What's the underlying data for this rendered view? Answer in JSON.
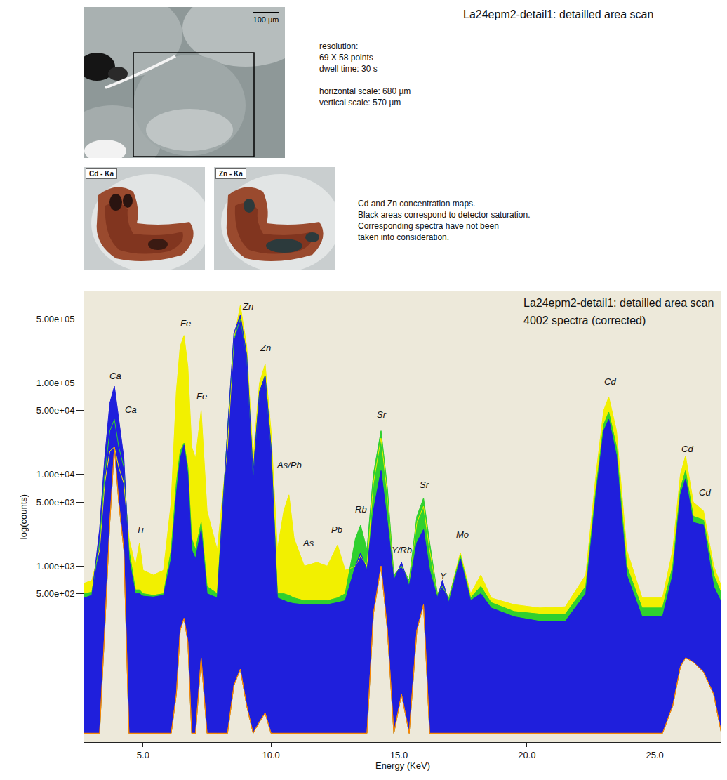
{
  "header": {
    "title": "La24epm2-detail1: detailled area scan"
  },
  "scan_info": [
    [
      "resolution:",
      "69 X 58 points",
      "dwell time: 30 s"
    ],
    [
      "horizontal scale: 680 µm",
      "vertical scale: 570 µm"
    ]
  ],
  "image": {
    "scale_bar": "100 µm"
  },
  "maps": [
    {
      "label": "Cd - Ka"
    },
    {
      "label": "Zn - Ka"
    }
  ],
  "caption": [
    "Cd and Zn concentration maps.",
    "Black areas correspond to detector saturation.",
    "Corresponding spectra have not been",
    "taken into consideration."
  ],
  "chart_data": {
    "type": "line",
    "title": "La24epm2-detail1: detailled area scan",
    "subtitle": "4002 spectra (corrected)",
    "x_label": "Energy (KeV)",
    "y_label": "log(counts)",
    "log": "y",
    "grid": false,
    "xlim": [
      2.7,
      27.6
    ],
    "ylim": [
      12,
      1000000
    ],
    "xticks": [
      {
        "value": 5,
        "label": "5.0"
      },
      {
        "value": 10,
        "label": "10.0"
      },
      {
        "value": 15,
        "label": "15.0"
      },
      {
        "value": 20,
        "label": "20.0"
      },
      {
        "value": 25,
        "label": "25.0"
      }
    ],
    "yticks": [
      {
        "value": 500,
        "label": "5.00e+02"
      },
      {
        "value": 1000,
        "label": "1.00e+03"
      },
      {
        "value": 5000,
        "label": "5.00e+03"
      },
      {
        "value": 10000,
        "label": "1.00e+04"
      },
      {
        "value": 50000,
        "label": "5.00e+04"
      },
      {
        "value": 100000,
        "label": "1.00e+05"
      },
      {
        "value": 500000,
        "label": "5.00e+05"
      }
    ],
    "x": [
      2.7,
      3.0,
      3.3,
      3.5,
      3.7,
      3.88,
      4.05,
      4.25,
      4.45,
      4.7,
      4.86,
      5.0,
      5.4,
      5.8,
      6.1,
      6.3,
      6.45,
      6.6,
      6.75,
      6.9,
      7.05,
      7.27,
      7.5,
      7.9,
      8.3,
      8.55,
      8.8,
      9.05,
      9.3,
      9.55,
      9.77,
      10.0,
      10.25,
      10.5,
      10.7,
      10.9,
      11.3,
      11.8,
      12.2,
      12.6,
      12.9,
      13.3,
      13.5,
      13.75,
      14.0,
      14.3,
      14.55,
      14.8,
      15.1,
      15.4,
      15.7,
      15.96,
      16.2,
      16.5,
      16.7,
      16.95,
      17.4,
      17.8,
      18.2,
      18.6,
      19.5,
      20.5,
      21.5,
      22.3,
      22.7,
      23.0,
      23.2,
      23.5,
      23.9,
      24.5,
      25.3,
      25.7,
      26.0,
      26.2,
      26.5,
      26.9,
      27.3,
      27.6
    ],
    "series": [
      {
        "color": "#f2f000",
        "values": [
          650,
          700,
          1500,
          8000,
          18000,
          20000,
          12000,
          8000,
          2000,
          1000,
          1800,
          900,
          800,
          900,
          5000,
          80000,
          250000,
          330000,
          150000,
          20000,
          15000,
          50000,
          4000,
          1500,
          20000,
          300000,
          700000,
          250000,
          15000,
          100000,
          160000,
          30000,
          1500,
          4000,
          6000,
          2000,
          1000,
          1100,
          1000,
          1700,
          900,
          1000,
          1300,
          1000,
          8000,
          25000,
          6000,
          800,
          1000,
          700,
          3000,
          4500,
          1500,
          500,
          600,
          450,
          1400,
          500,
          800,
          450,
          380,
          350,
          360,
          800,
          10000,
          50000,
          70000,
          30000,
          1500,
          450,
          450,
          1500,
          10000,
          16000,
          5000,
          4000,
          1000,
          600
        ]
      },
      {
        "color": "#2fd02f",
        "values": [
          500,
          520,
          1800,
          10000,
          30000,
          40000,
          20000,
          12000,
          1500,
          550,
          550,
          500,
          480,
          500,
          1500,
          8000,
          18000,
          22000,
          12000,
          2000,
          1500,
          3000,
          600,
          500,
          30000,
          300000,
          500000,
          200000,
          10000,
          80000,
          120000,
          20000,
          500,
          500,
          480,
          450,
          420,
          420,
          420,
          450,
          500,
          2000,
          2800,
          1500,
          10000,
          30000,
          7000,
          800,
          1000,
          700,
          3500,
          5500,
          1800,
          500,
          600,
          450,
          1300,
          450,
          600,
          400,
          320,
          300,
          300,
          600,
          7000,
          35000,
          48000,
          20000,
          1000,
          350,
          350,
          1000,
          7000,
          11000,
          3500,
          3200,
          800,
          500
        ]
      },
      {
        "color": "#1f1fdc",
        "values": [
          450,
          480,
          2500,
          15000,
          60000,
          92000,
          40000,
          15000,
          1200,
          500,
          500,
          470,
          460,
          480,
          1200,
          6000,
          15000,
          21000,
          10000,
          1500,
          1200,
          2500,
          500,
          450,
          30000,
          350000,
          550000,
          200000,
          10000,
          80000,
          120000,
          20000,
          450,
          420,
          400,
          390,
          380,
          380,
          380,
          400,
          420,
          1000,
          1400,
          900,
          4000,
          11000,
          3000,
          700,
          1100,
          600,
          1800,
          2500,
          900,
          450,
          700,
          400,
          1200,
          420,
          500,
          350,
          280,
          250,
          250,
          500,
          6000,
          30000,
          40000,
          16000,
          800,
          280,
          280,
          800,
          6000,
          9000,
          3000,
          2800,
          600,
          400
        ]
      },
      {
        "color": "#ff8a00",
        "values": [
          15,
          15,
          15,
          200,
          3000,
          20000,
          5000,
          1500,
          15,
          15,
          15,
          15,
          15,
          15,
          15,
          40,
          200,
          270,
          150,
          15,
          15,
          100,
          15,
          15,
          15,
          50,
          75,
          30,
          15,
          20,
          25,
          15,
          15,
          15,
          15,
          15,
          15,
          15,
          15,
          15,
          15,
          15,
          15,
          15,
          300,
          1000,
          200,
          15,
          40,
          15,
          200,
          380,
          15,
          15,
          15,
          15,
          15,
          15,
          15,
          15,
          15,
          15,
          15,
          15,
          15,
          15,
          15,
          15,
          15,
          15,
          15,
          30,
          80,
          100,
          90,
          70,
          40,
          15
        ]
      }
    ],
    "annotations": [
      {
        "text": "Ca",
        "x": 3.93,
        "y": 120000
      },
      {
        "text": "Ca",
        "x": 4.53,
        "y": 51000
      },
      {
        "text": "Ti",
        "x": 4.89,
        "y": 2500
      },
      {
        "text": "Fe",
        "x": 6.67,
        "y": 450000
      },
      {
        "text": "Fe",
        "x": 7.3,
        "y": 71000
      },
      {
        "text": "Zn",
        "x": 9.1,
        "y": 680000
      },
      {
        "text": "Zn",
        "x": 9.77,
        "y": 240000
      },
      {
        "text": "As/Pb",
        "x": 10.7,
        "y": 12600
      },
      {
        "text": "As",
        "x": 11.47,
        "y": 1800
      },
      {
        "text": "Pb",
        "x": 12.56,
        "y": 2500
      },
      {
        "text": "Rb",
        "x": 13.52,
        "y": 4200
      },
      {
        "text": "Sr",
        "x": 14.34,
        "y": 45000
      },
      {
        "text": "Y/Rb",
        "x": 15.11,
        "y": 1500
      },
      {
        "text": "Sr",
        "x": 15.99,
        "y": 7800
      },
      {
        "text": "Y",
        "x": 16.73,
        "y": 780
      },
      {
        "text": "Mo",
        "x": 17.49,
        "y": 2200
      },
      {
        "text": "Cd",
        "x": 23.25,
        "y": 103000
      },
      {
        "text": "Cd",
        "x": 26.26,
        "y": 19000
      },
      {
        "text": "Cd",
        "x": 26.95,
        "y": 6400
      }
    ]
  }
}
